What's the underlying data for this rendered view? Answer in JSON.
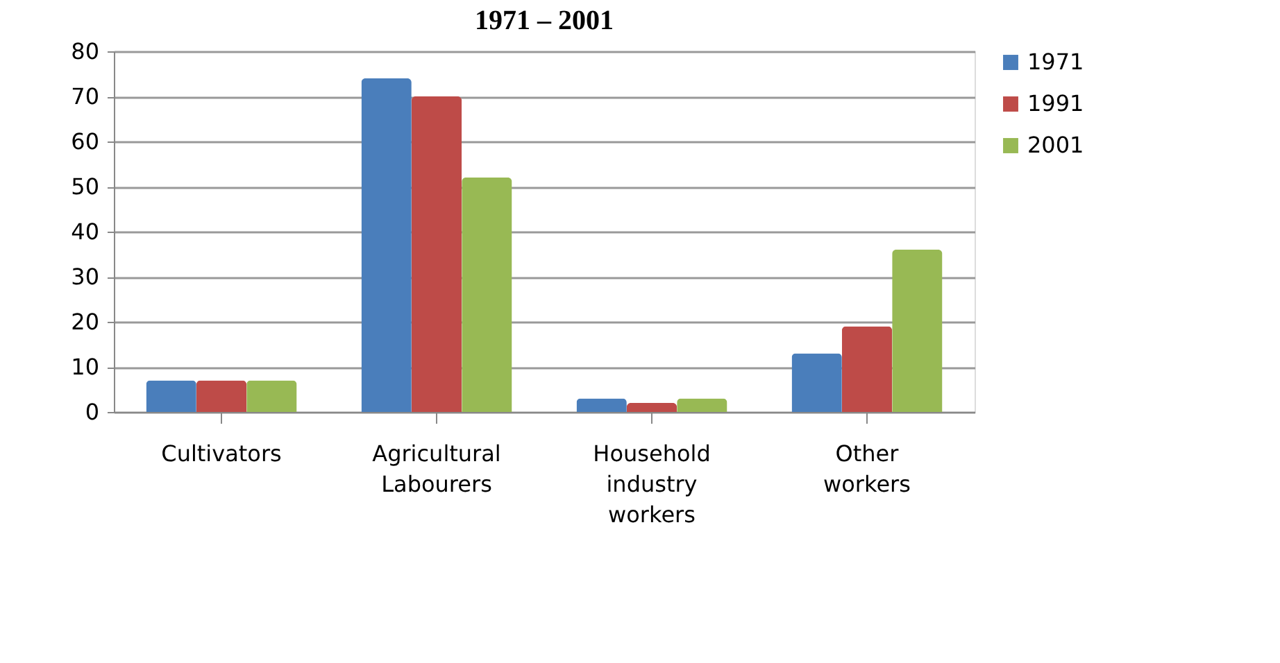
{
  "chart_data": {
    "type": "bar",
    "title": "1971 – 2001",
    "categories": [
      "Cultivators",
      "Agricultural Labourers",
      "Household industry workers",
      "Other workers"
    ],
    "series": [
      {
        "name": "1971",
        "color": "#4a7ebb",
        "values": [
          7,
          74,
          3,
          13
        ]
      },
      {
        "name": "1991",
        "color": "#be4b48",
        "values": [
          7,
          70,
          2,
          19
        ]
      },
      {
        "name": "2001",
        "color": "#98b954",
        "values": [
          7,
          52,
          3,
          36
        ]
      }
    ],
    "ylim": [
      0,
      80
    ],
    "yticks": [
      0,
      10,
      20,
      30,
      40,
      50,
      60,
      70,
      80
    ],
    "grid": "y",
    "legend": "right"
  }
}
